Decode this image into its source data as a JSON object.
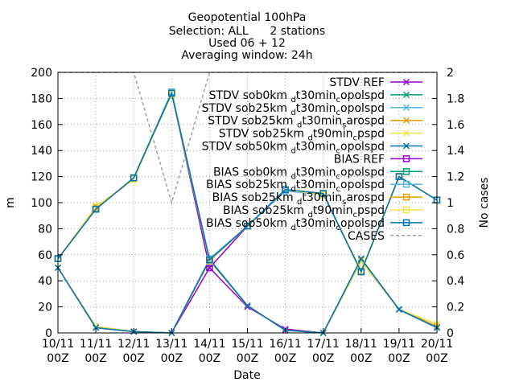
{
  "chart_data": {
    "type": "line",
    "title_lines": [
      "Geopotential 100hPa",
      "Selection: ALL      2 stations",
      "Used 06 + 12",
      "Averaging window: 24h"
    ],
    "xlabel": "Date",
    "ylabel": "m",
    "y2label": "No cases",
    "ylim": [
      0,
      200
    ],
    "y2lim": [
      0,
      2
    ],
    "grid": true,
    "legend_position": "top-right",
    "x_ticks": [
      {
        "top": "10/11",
        "bottom": "00Z"
      },
      {
        "top": "11/11",
        "bottom": "00Z"
      },
      {
        "top": "12/11",
        "bottom": "00Z"
      },
      {
        "top": "13/11",
        "bottom": "00Z"
      },
      {
        "top": "14/11",
        "bottom": "00Z"
      },
      {
        "top": "15/11",
        "bottom": "00Z"
      },
      {
        "top": "16/11",
        "bottom": "00Z"
      },
      {
        "top": "17/11",
        "bottom": "00Z"
      },
      {
        "top": "18/11",
        "bottom": "00Z"
      },
      {
        "top": "19/11",
        "bottom": "00Z"
      },
      {
        "top": "20/11",
        "bottom": "00Z"
      }
    ],
    "y_ticks": [
      "0",
      "20",
      "40",
      "60",
      "80",
      "100",
      "120",
      "140",
      "160",
      "180",
      "200"
    ],
    "y2_ticks": [
      "0",
      "0.2",
      "0.4",
      "0.6",
      "0.8",
      "1",
      "1.2",
      "1.4",
      "1.6",
      "1.8",
      "2"
    ],
    "series": [
      {
        "name": "STDV REF",
        "group": "stdv",
        "color": "#9400d3",
        "marker": "x",
        "values": [
          50,
          5,
          1,
          0,
          50,
          20,
          3,
          0,
          55,
          18,
          5
        ]
      },
      {
        "name": "STDV sob0km_d t30min_c opolspd",
        "group": "stdv",
        "color": "#009e73",
        "marker": "x",
        "values": [
          50,
          4,
          1,
          0,
          56,
          21,
          2,
          0,
          57,
          18,
          4
        ]
      },
      {
        "name": "STDV sob25km_d t30min_c opolspd",
        "group": "stdv",
        "color": "#56b4e9",
        "marker": "x",
        "values": [
          50,
          4,
          1,
          0,
          57,
          21,
          2,
          0,
          57,
          18,
          4
        ]
      },
      {
        "name": "STDV sob25km_d t30min_s arospd",
        "group": "stdv",
        "color": "#e69f00",
        "marker": "x",
        "values": [
          50,
          4,
          1,
          0,
          56,
          21,
          2,
          0,
          56,
          18,
          5
        ]
      },
      {
        "name": "STDV sob25km_d t90min_c pspd",
        "group": "stdv",
        "color": "#f0e442",
        "marker": "x",
        "values": [
          50,
          5,
          1,
          0,
          55,
          21,
          2,
          0,
          55,
          18,
          7
        ]
      },
      {
        "name": "STDV sob50km_d t30min_c opolspd",
        "group": "stdv",
        "color": "#0072b2",
        "marker": "x",
        "values": [
          50,
          4,
          1,
          0,
          56,
          21,
          2,
          0,
          57,
          18,
          4
        ]
      },
      {
        "name": "BIAS REF",
        "group": "bias",
        "color": "#9400d3",
        "marker": "square",
        "values": [
          57,
          95,
          119,
          184,
          50,
          82,
          110,
          107,
          47,
          120,
          102
        ]
      },
      {
        "name": "BIAS sob0km_d t30min_c opolspd",
        "group": "bias",
        "color": "#009e73",
        "marker": "square",
        "values": [
          57,
          95,
          119,
          185,
          56,
          82,
          110,
          107,
          47,
          120,
          102
        ]
      },
      {
        "name": "BIAS sob25km_d t30min_c opolspd",
        "group": "bias",
        "color": "#56b4e9",
        "marker": "square",
        "values": [
          57,
          95,
          119,
          185,
          57,
          82,
          109,
          106,
          47,
          120,
          102
        ]
      },
      {
        "name": "BIAS sob25km_d t30min_s arospd",
        "group": "bias",
        "color": "#e69f00",
        "marker": "square",
        "values": [
          57,
          96,
          118,
          184,
          56,
          82,
          110,
          107,
          47,
          120,
          102
        ]
      },
      {
        "name": "BIAS sob25km_d t90min_c pspd",
        "group": "bias",
        "color": "#f0e442",
        "marker": "square",
        "values": [
          57,
          97,
          118,
          183,
          55,
          82,
          110,
          106,
          48,
          120,
          102
        ]
      },
      {
        "name": "BIAS sob50km_d t30min_c opolspd",
        "group": "bias",
        "color": "#0072b2",
        "marker": "square",
        "values": [
          57,
          95,
          119,
          184,
          56,
          82,
          110,
          107,
          47,
          120,
          102
        ]
      },
      {
        "name": "CASES",
        "group": "cases",
        "color": "#a0a0a0",
        "marker": "none",
        "axis": "y2",
        "values": [
          2,
          2,
          2,
          1,
          2,
          2,
          2,
          2,
          2,
          2,
          2
        ]
      }
    ],
    "legend": [
      {
        "base": "STDV REF"
      },
      {
        "base": "STDV sob0km",
        "sub1": "d",
        "mid": "t30min",
        "sub2": "c",
        "tail": "opolspd"
      },
      {
        "base": "STDV sob25km",
        "sub1": "d",
        "mid": "t30min",
        "sub2": "c",
        "tail": "opolspd"
      },
      {
        "base": "STDV sob25km",
        "sub1": "d",
        "mid": "t30min",
        "sub2": "s",
        "tail": "arospd"
      },
      {
        "base": "STDV sob25km",
        "sub1": "d",
        "mid": "t90min",
        "sub2": "c",
        "tail": "pspd"
      },
      {
        "base": "STDV sob50km",
        "sub1": "d",
        "mid": "t30min",
        "sub2": "c",
        "tail": "opolspd"
      },
      {
        "base": "BIAS REF"
      },
      {
        "base": "BIAS sob0km",
        "sub1": "d",
        "mid": "t30min",
        "sub2": "c",
        "tail": "opolspd"
      },
      {
        "base": "BIAS sob25km",
        "sub1": "d",
        "mid": "t30min",
        "sub2": "c",
        "tail": "opolspd"
      },
      {
        "base": "BIAS sob25km",
        "sub1": "d",
        "mid": "t30min",
        "sub2": "s",
        "tail": "arospd"
      },
      {
        "base": "BIAS sob25km",
        "sub1": "d",
        "mid": "t90min",
        "sub2": "c",
        "tail": "pspd"
      },
      {
        "base": "BIAS sob50km",
        "sub1": "d",
        "mid": "t30min",
        "sub2": "c",
        "tail": "opolspd"
      },
      {
        "base": "CASES"
      }
    ]
  }
}
